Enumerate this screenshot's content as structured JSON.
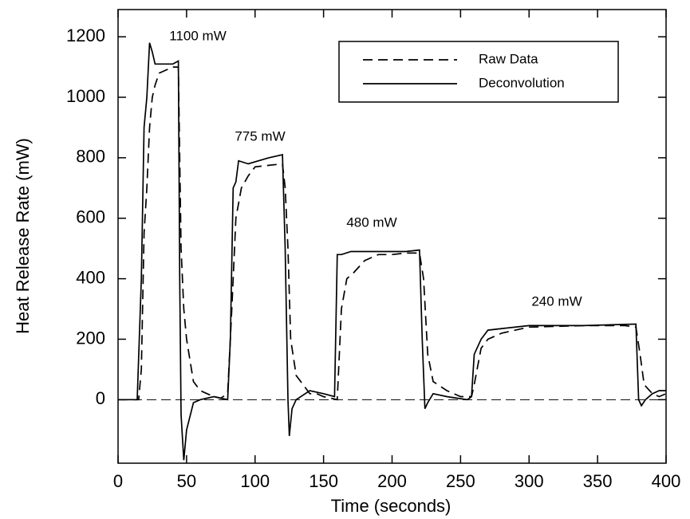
{
  "chart_data": {
    "type": "line",
    "x_label": "Time (seconds)",
    "y_label": "Heat Release Rate (mW)",
    "xlim": [
      0,
      400
    ],
    "ylim": [
      -210,
      1290
    ],
    "xticks": [
      0,
      50,
      100,
      150,
      200,
      250,
      300,
      350,
      400
    ],
    "yticks": [
      0,
      200,
      400,
      600,
      800,
      1000,
      1200
    ],
    "reference_line": 0,
    "legend": "upper right",
    "annotations": [
      "1100 mW",
      "775 mW",
      "480 mW",
      "240 mW"
    ],
    "series": [
      {
        "name": "Raw Data",
        "color": "#000000",
        "style": "dashed",
        "x": [
          0,
          10,
          15,
          17,
          19,
          21,
          23,
          25,
          27,
          30,
          35,
          40,
          44,
          46,
          48,
          50,
          55,
          60,
          65,
          70,
          75,
          80,
          83,
          86,
          90,
          95,
          100,
          110,
          120,
          122,
          124,
          126,
          130,
          135,
          140,
          145,
          150,
          160,
          163,
          167,
          172,
          180,
          190,
          200,
          210,
          220,
          223,
          226,
          230,
          240,
          250,
          258,
          260,
          265,
          270,
          280,
          300,
          340,
          370,
          378,
          381,
          384,
          390,
          395,
          400
        ],
        "values": [
          0,
          0,
          0,
          100,
          550,
          700,
          900,
          1000,
          1040,
          1080,
          1090,
          1100,
          1100,
          500,
          300,
          200,
          60,
          30,
          20,
          10,
          5,
          20,
          300,
          600,
          700,
          740,
          770,
          775,
          780,
          700,
          500,
          200,
          80,
          50,
          20,
          20,
          10,
          0,
          300,
          400,
          420,
          460,
          480,
          480,
          485,
          485,
          400,
          150,
          60,
          30,
          10,
          10,
          50,
          170,
          200,
          220,
          240,
          245,
          245,
          240,
          150,
          50,
          20,
          10,
          20
        ]
      },
      {
        "name": "Deconvolution",
        "color": "#000000",
        "style": "solid",
        "x": [
          0,
          10,
          14,
          17,
          19,
          21,
          23,
          25,
          27,
          30,
          40,
          44,
          45,
          46,
          48,
          50,
          55,
          60,
          70,
          80,
          82,
          84,
          86,
          88,
          95,
          110,
          120,
          122,
          124,
          125,
          127,
          130,
          140,
          150,
          158,
          160,
          163,
          170,
          190,
          210,
          220,
          222,
          224,
          226,
          230,
          240,
          255,
          258,
          260,
          265,
          270,
          300,
          340,
          378,
          380,
          382,
          385,
          390,
          395,
          400
        ],
        "values": [
          0,
          0,
          0,
          400,
          900,
          1000,
          1180,
          1150,
          1110,
          1110,
          1110,
          1120,
          400,
          -50,
          -200,
          -100,
          -10,
          0,
          10,
          0,
          200,
          700,
          720,
          790,
          780,
          800,
          810,
          500,
          0,
          -120,
          -30,
          0,
          30,
          20,
          10,
          480,
          480,
          490,
          490,
          490,
          495,
          200,
          -30,
          -10,
          20,
          10,
          0,
          10,
          150,
          200,
          230,
          245,
          245,
          250,
          0,
          -20,
          0,
          20,
          30,
          30
        ]
      }
    ]
  }
}
